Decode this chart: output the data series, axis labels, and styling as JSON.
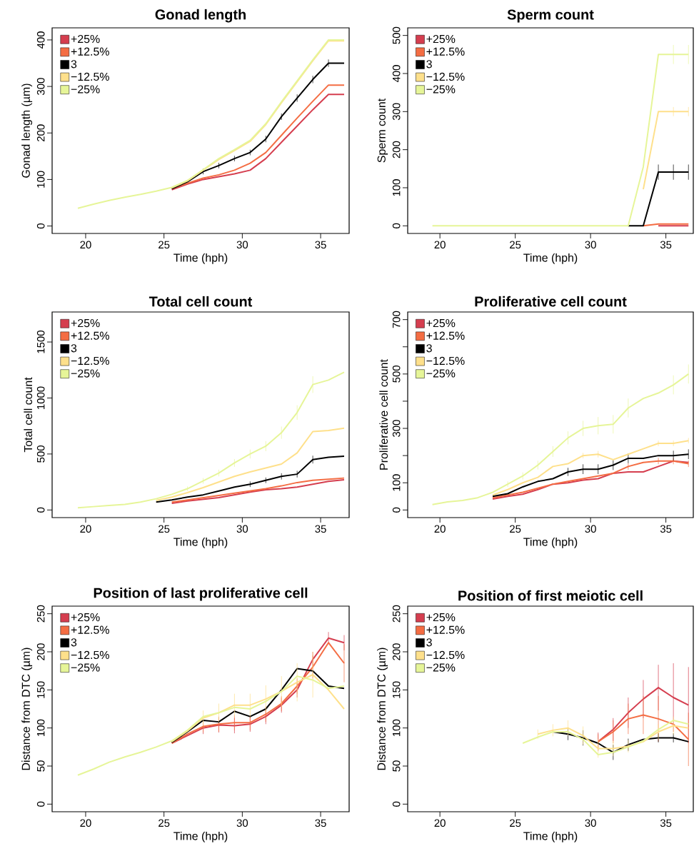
{
  "chart_data": [
    {
      "type": "line",
      "title": "Gonad length",
      "xlabel": "Time (hph)",
      "ylabel": "Gonad length (µm)",
      "legend": "top left",
      "x": [
        19.5,
        20.5,
        21.5,
        22.5,
        23.5,
        24.5,
        25.5,
        26.5,
        27.5,
        28.5,
        29.5,
        30.5,
        31.5,
        32.5,
        33.5,
        34.5,
        35.5,
        36.5
      ],
      "xlim": [
        17.86,
        36.82
      ],
      "xticks": [
        20,
        25,
        30,
        35
      ],
      "ylim": [
        -16,
        426
      ],
      "yticks": [
        0,
        100,
        200,
        300,
        400
      ],
      "series": [
        {
          "name": "+25%",
          "color": "#d53e4f",
          "values": [
            null,
            null,
            null,
            null,
            null,
            null,
            78,
            90,
            100,
            106,
            112,
            120,
            145,
            180,
            215,
            250,
            283,
            283
          ]
        },
        {
          "name": "+12.5%",
          "color": "#f46d43",
          "values": [
            null,
            null,
            null,
            null,
            null,
            null,
            80,
            92,
            103,
            110,
            120,
            135,
            158,
            195,
            232,
            268,
            303,
            303
          ]
        },
        {
          "name": "3",
          "color": "#000000",
          "values": [
            null,
            null,
            null,
            null,
            null,
            null,
            80,
            95,
            117,
            130,
            145,
            158,
            187,
            235,
            275,
            315,
            350,
            350
          ],
          "errors": [
            null,
            null,
            null,
            null,
            null,
            null,
            null,
            null,
            6,
            6,
            6,
            6,
            7,
            7,
            8,
            8,
            8,
            null
          ]
        },
        {
          "name": "−12.5%",
          "color": "#fee08b",
          "values": [
            null,
            null,
            null,
            null,
            null,
            null,
            82,
            97,
            120,
            143,
            162,
            182,
            218,
            265,
            310,
            355,
            398,
            398
          ]
        },
        {
          "name": "−25%",
          "color": "#e6f598",
          "values": [
            38,
            47,
            55,
            62,
            68,
            75,
            83,
            98,
            121,
            145,
            164,
            184,
            220,
            267,
            312,
            357,
            400,
            400
          ]
        }
      ]
    },
    {
      "type": "line",
      "title": "Sperm count",
      "xlabel": "Time (hph)",
      "ylabel": "Sperm count",
      "legend": "top left",
      "x": [
        19.5,
        20.5,
        21.5,
        22.5,
        23.5,
        24.5,
        25.5,
        26.5,
        27.5,
        28.5,
        29.5,
        30.5,
        31.5,
        32.5,
        33.5,
        34.5,
        35.5,
        36.5
      ],
      "xlim": [
        17.86,
        36.82
      ],
      "xticks": [
        20,
        25,
        30,
        35
      ],
      "ylim": [
        -20,
        520
      ],
      "yticks": [
        0,
        100,
        200,
        300,
        400,
        500
      ],
      "series": [
        {
          "name": "+25%",
          "color": "#d53e4f",
          "values": [
            null,
            null,
            null,
            null,
            null,
            null,
            null,
            null,
            null,
            null,
            null,
            null,
            null,
            null,
            null,
            0,
            0,
            0
          ]
        },
        {
          "name": "+12.5%",
          "color": "#f46d43",
          "values": [
            null,
            null,
            null,
            null,
            null,
            null,
            null,
            null,
            null,
            null,
            null,
            null,
            null,
            null,
            0,
            5,
            5,
            5
          ]
        },
        {
          "name": "3",
          "color": "#000000",
          "values": [
            null,
            null,
            null,
            null,
            null,
            null,
            null,
            null,
            null,
            null,
            null,
            null,
            null,
            0,
            0,
            141,
            141,
            141
          ],
          "errors": [
            null,
            null,
            null,
            null,
            null,
            null,
            null,
            null,
            null,
            null,
            null,
            null,
            null,
            null,
            null,
            20,
            20,
            20
          ]
        },
        {
          "name": "−12.5%",
          "color": "#fee08b",
          "values": [
            null,
            null,
            null,
            null,
            null,
            null,
            null,
            null,
            null,
            null,
            null,
            null,
            null,
            null,
            96,
            300,
            300,
            300
          ],
          "errors": [
            null,
            null,
            null,
            null,
            null,
            null,
            null,
            null,
            null,
            null,
            null,
            null,
            null,
            null,
            null,
            null,
            12,
            12
          ]
        },
        {
          "name": "−25%",
          "color": "#e6f598",
          "values": [
            0,
            0,
            0,
            0,
            0,
            0,
            0,
            0,
            0,
            0,
            0,
            0,
            0,
            0,
            155,
            450,
            450,
            450
          ],
          "errors": [
            null,
            null,
            null,
            null,
            null,
            null,
            null,
            null,
            null,
            null,
            null,
            null,
            null,
            null,
            null,
            null,
            25,
            25
          ]
        }
      ]
    },
    {
      "type": "line",
      "title": "Total cell count",
      "xlabel": "Time (hph)",
      "ylabel": "Total cell count",
      "legend": "top left",
      "x": [
        19.5,
        20.5,
        21.5,
        22.5,
        23.5,
        24.5,
        25.5,
        26.5,
        27.5,
        28.5,
        29.5,
        30.5,
        31.5,
        32.5,
        33.5,
        34.5,
        35.5,
        36.5
      ],
      "xlim": [
        17.86,
        36.82
      ],
      "xticks": [
        20,
        25,
        30,
        35
      ],
      "ylim": [
        -68,
        1768
      ],
      "yticks": [
        0,
        500,
        1000,
        1500
      ],
      "series": [
        {
          "name": "+25%",
          "color": "#d53e4f",
          "values": [
            null,
            null,
            null,
            null,
            null,
            null,
            60,
            80,
            95,
            110,
            135,
            160,
            180,
            190,
            205,
            230,
            255,
            270
          ]
        },
        {
          "name": "+12.5%",
          "color": "#f46d43",
          "values": [
            null,
            null,
            null,
            null,
            null,
            null,
            70,
            90,
            110,
            130,
            150,
            170,
            190,
            215,
            245,
            265,
            275,
            285
          ]
        },
        {
          "name": "3",
          "color": "#000000",
          "values": [
            null,
            null,
            null,
            null,
            null,
            70,
            90,
            115,
            135,
            170,
            205,
            230,
            265,
            300,
            320,
            450,
            470,
            480
          ],
          "errors": [
            null,
            null,
            null,
            null,
            null,
            null,
            null,
            null,
            null,
            null,
            null,
            25,
            25,
            28,
            30,
            35,
            null,
            null
          ]
        },
        {
          "name": "−12.5%",
          "color": "#fee08b",
          "values": [
            null,
            null,
            null,
            null,
            null,
            85,
            115,
            155,
            200,
            250,
            300,
            340,
            375,
            410,
            510,
            700,
            710,
            730
          ]
        },
        {
          "name": "−25%",
          "color": "#e6f598",
          "values": [
            20,
            30,
            40,
            50,
            70,
            100,
            140,
            190,
            260,
            330,
            420,
            500,
            570,
            690,
            870,
            1120,
            1160,
            1230
          ],
          "errors": [
            null,
            null,
            null,
            null,
            null,
            null,
            null,
            20,
            25,
            30,
            35,
            40,
            45,
            55,
            65,
            75,
            null,
            null
          ]
        }
      ]
    },
    {
      "type": "line",
      "title": "Proliferative cell count",
      "xlabel": "Time (hph)",
      "ylabel": "Proliferative cell count",
      "legend": "top left",
      "x": [
        19.5,
        20.5,
        21.5,
        22.5,
        23.5,
        24.5,
        25.5,
        26.5,
        27.5,
        28.5,
        29.5,
        30.5,
        31.5,
        32.5,
        33.5,
        34.5,
        35.5,
        36.5
      ],
      "xlim": [
        17.86,
        36.82
      ],
      "xticks": [
        20,
        25,
        30,
        35
      ],
      "ylim": [
        -28,
        728
      ],
      "yticks": [
        0,
        100,
        {
          "value": 200,
          "label": null
        },
        300,
        {
          "value": 400,
          "label": null
        },
        500,
        {
          "value": 600,
          "label": null
        },
        700
      ],
      "series": [
        {
          "name": "+25%",
          "color": "#d53e4f",
          "values": [
            null,
            null,
            null,
            null,
            40,
            50,
            58,
            75,
            95,
            100,
            110,
            115,
            135,
            140,
            140,
            160,
            180,
            175
          ]
        },
        {
          "name": "+12.5%",
          "color": "#f46d43",
          "values": [
            null,
            null,
            null,
            null,
            45,
            55,
            65,
            80,
            95,
            105,
            115,
            125,
            135,
            160,
            175,
            180,
            180,
            170
          ],
          "errors": [
            null,
            null,
            null,
            null,
            null,
            null,
            null,
            null,
            null,
            null,
            null,
            null,
            null,
            12,
            null,
            12,
            12,
            12
          ]
        },
        {
          "name": "3",
          "color": "#000000",
          "values": [
            null,
            null,
            null,
            null,
            50,
            60,
            85,
            105,
            115,
            140,
            150,
            150,
            165,
            190,
            190,
            200,
            200,
            205
          ],
          "errors": [
            null,
            null,
            null,
            null,
            null,
            null,
            null,
            null,
            null,
            15,
            18,
            18,
            18,
            18,
            null,
            null,
            18,
            18
          ]
        },
        {
          "name": "−12.5%",
          "color": "#fee08b",
          "values": [
            null,
            null,
            null,
            null,
            55,
            75,
            100,
            120,
            160,
            170,
            200,
            205,
            185,
            205,
            225,
            245,
            245,
            255
          ],
          "errors": [
            null,
            null,
            null,
            null,
            null,
            null,
            null,
            null,
            null,
            null,
            10,
            12,
            null,
            null,
            null,
            10,
            10,
            10
          ]
        },
        {
          "name": "−25%",
          "color": "#e6f598",
          "values": [
            20,
            30,
            35,
            45,
            65,
            95,
            125,
            165,
            215,
            265,
            300,
            310,
            315,
            375,
            410,
            430,
            460,
            500
          ],
          "errors": [
            null,
            null,
            null,
            null,
            null,
            10,
            13,
            16,
            20,
            24,
            28,
            32,
            34,
            35,
            null,
            null,
            35,
            35
          ]
        }
      ]
    },
    {
      "type": "line",
      "title": "Position of last proliferative cell",
      "xlabel": "Time (hph)",
      "ylabel": "Distance from DTC (µm)",
      "legend": "top left",
      "x": [
        19.5,
        20.5,
        21.5,
        22.5,
        23.5,
        24.5,
        25.5,
        26.5,
        27.5,
        28.5,
        29.5,
        30.5,
        31.5,
        32.5,
        33.5,
        34.5,
        35.5,
        36.5
      ],
      "xlim": [
        17.86,
        36.82
      ],
      "xticks": [
        20,
        25,
        30,
        35
      ],
      "ylim": [
        -10,
        260
      ],
      "yticks": [
        0,
        50,
        100,
        150,
        200,
        250
      ],
      "series": [
        {
          "name": "+25%",
          "color": "#d53e4f",
          "values": [
            null,
            null,
            null,
            null,
            null,
            null,
            80,
            90,
            100,
            104,
            103,
            105,
            115,
            130,
            150,
            190,
            218,
            212
          ],
          "errors": [
            null,
            null,
            null,
            null,
            null,
            null,
            null,
            null,
            8,
            10,
            10,
            10,
            10,
            10,
            10,
            10,
            8,
            10
          ]
        },
        {
          "name": "+12.5%",
          "color": "#f46d43",
          "values": [
            null,
            null,
            null,
            null,
            null,
            null,
            80,
            92,
            102,
            105,
            107,
            107,
            118,
            132,
            155,
            180,
            212,
            185
          ],
          "errors": [
            null,
            null,
            null,
            null,
            null,
            null,
            null,
            null,
            8,
            10,
            10,
            10,
            10,
            10,
            10,
            15,
            null,
            25
          ]
        },
        {
          "name": "3",
          "color": "#000000",
          "values": [
            null,
            null,
            null,
            null,
            null,
            null,
            81,
            95,
            110,
            108,
            122,
            115,
            125,
            150,
            178,
            175,
            155,
            152
          ]
        },
        {
          "name": "−12.5%",
          "color": "#fee08b",
          "values": [
            null,
            null,
            null,
            null,
            null,
            null,
            82,
            96,
            113,
            120,
            130,
            130,
            138,
            148,
            160,
            170,
            150,
            125
          ],
          "errors": [
            null,
            null,
            null,
            null,
            null,
            null,
            null,
            null,
            10,
            12,
            15,
            15,
            18,
            20,
            25,
            30,
            null,
            null
          ]
        },
        {
          "name": "−25%",
          "color": "#e6f598",
          "values": [
            38,
            46,
            55,
            62,
            68,
            75,
            83,
            97,
            115,
            120,
            127,
            125,
            135,
            148,
            168,
            163,
            152,
            155
          ]
        }
      ]
    },
    {
      "type": "line",
      "title": "Position of first meiotic cell",
      "xlabel": "Time (hph)",
      "ylabel": "Distance from DTC (µm)",
      "legend": "top left",
      "x": [
        25.5,
        26.5,
        27.5,
        28.5,
        29.5,
        30.5,
        31.5,
        32.5,
        33.5,
        34.5,
        35.5,
        36.5
      ],
      "xlim": [
        17.86,
        36.82
      ],
      "xticks": [
        20,
        25,
        30,
        35
      ],
      "ylim": [
        -10,
        260
      ],
      "yticks": [
        0,
        50,
        100,
        150,
        200,
        250
      ],
      "series": [
        {
          "name": "+25%",
          "color": "#d53e4f",
          "values": [
            null,
            null,
            null,
            null,
            null,
            82,
            98,
            120,
            138,
            153,
            140,
            130
          ],
          "errors": [
            null,
            null,
            null,
            null,
            null,
            12,
            15,
            20,
            25,
            30,
            45,
            50
          ]
        },
        {
          "name": "+12.5%",
          "color": "#f46d43",
          "values": [
            null,
            null,
            null,
            null,
            null,
            82,
            95,
            112,
            117,
            112,
            105,
            85
          ],
          "errors": [
            null,
            null,
            null,
            null,
            null,
            10,
            15,
            20,
            25,
            30,
            null,
            35
          ]
        },
        {
          "name": "3",
          "color": "#000000",
          "values": [
            null,
            null,
            95,
            92,
            87,
            80,
            68,
            78,
            85,
            87,
            87,
            82
          ],
          "errors": [
            null,
            null,
            null,
            8,
            10,
            null,
            10,
            8,
            null,
            6,
            6,
            null
          ]
        },
        {
          "name": "−12.5%",
          "color": "#fee08b",
          "values": [
            null,
            92,
            97,
            100,
            90,
            73,
            73,
            76,
            82,
            95,
            103,
            100
          ],
          "errors": [
            null,
            6,
            8,
            10,
            12,
            12,
            10,
            8,
            null,
            10,
            12,
            null
          ]
        },
        {
          "name": "−25%",
          "color": "#e6f598",
          "values": [
            80,
            88,
            95,
            95,
            85,
            65,
            68,
            75,
            83,
            98,
            110,
            105
          ]
        }
      ]
    }
  ]
}
